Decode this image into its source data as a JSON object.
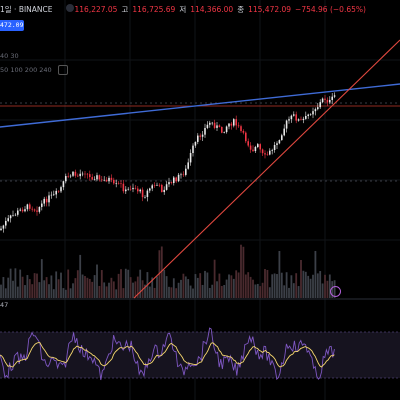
{
  "header": {
    "title_fragment": "1일 · BINANCE",
    "open_label": "",
    "open_value": "116,227.05",
    "high_label": "고",
    "high_value": "116,725.69",
    "low_label": "저",
    "low_value": "114,366.00",
    "close_label": "종",
    "close_value": "115,472.09",
    "change": "−754.96 (−0.65%)"
  },
  "price_badge": "472.09",
  "ma_row1": "40 30",
  "ma_row2": "50 100 200 240",
  "indicator_label": "47",
  "colors": {
    "background": "#000000",
    "candle_up": "#e9e9e9",
    "candle_down": "#f23645",
    "trendline_blue": "#3f6bd6",
    "trendline_red": "#e0483f",
    "price_line": "#c0392b",
    "volume": "#4a4d55",
    "rsi_line": "#7e57c2",
    "rsi_signal": "#f5d76e",
    "rsi_band": "#1a1726"
  },
  "chart_data": {
    "type": "candlestick",
    "symbol": "BINANCE",
    "interval": "1일",
    "ohlc_last": {
      "open": 116227.05,
      "high": 116725.69,
      "low": 114366.0,
      "close": 115472.09
    },
    "price_path": [
      [
        0,
        230
      ],
      [
        6,
        222
      ],
      [
        12,
        216
      ],
      [
        18,
        212
      ],
      [
        24,
        208
      ],
      [
        30,
        206
      ],
      [
        36,
        210
      ],
      [
        42,
        204
      ],
      [
        48,
        198
      ],
      [
        54,
        196
      ],
      [
        60,
        190
      ],
      [
        66,
        178
      ],
      [
        72,
        174
      ],
      [
        78,
        176
      ],
      [
        84,
        170
      ],
      [
        90,
        178
      ],
      [
        96,
        176
      ],
      [
        102,
        182
      ],
      [
        108,
        178
      ],
      [
        114,
        186
      ],
      [
        120,
        184
      ],
      [
        126,
        192
      ],
      [
        132,
        186
      ],
      [
        138,
        190
      ],
      [
        144,
        196
      ],
      [
        150,
        188
      ],
      [
        156,
        184
      ],
      [
        162,
        190
      ],
      [
        168,
        184
      ],
      [
        174,
        180
      ],
      [
        180,
        176
      ],
      [
        186,
        170
      ],
      [
        192,
        150
      ],
      [
        198,
        138
      ],
      [
        204,
        130
      ],
      [
        210,
        122
      ],
      [
        216,
        126
      ],
      [
        222,
        132
      ],
      [
        228,
        124
      ],
      [
        234,
        122
      ],
      [
        240,
        130
      ],
      [
        246,
        140
      ],
      [
        252,
        150
      ],
      [
        258,
        146
      ],
      [
        264,
        158
      ],
      [
        270,
        152
      ],
      [
        276,
        144
      ],
      [
        282,
        132
      ],
      [
        288,
        120
      ],
      [
        294,
        116
      ],
      [
        300,
        122
      ],
      [
        306,
        118
      ],
      [
        312,
        110
      ],
      [
        318,
        106
      ],
      [
        324,
        98
      ],
      [
        330,
        102
      ],
      [
        336,
        94
      ]
    ],
    "trendlines": [
      {
        "name": "resistance",
        "from": [
          0,
          127
        ],
        "to": [
          400,
          84
        ]
      },
      {
        "name": "support",
        "from": [
          134,
          298
        ],
        "to": [
          400,
          40
        ]
      }
    ]
  }
}
